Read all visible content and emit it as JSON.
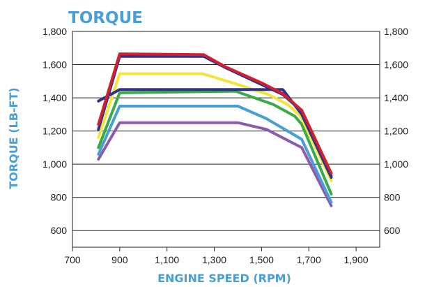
{
  "chart_data": {
    "type": "line",
    "title": "TORQUE",
    "xlabel": "ENGINE SPEED (RPM)",
    "ylabel": "TORQUE (LB-FT)",
    "xlim": [
      700,
      2000
    ],
    "ylim": [
      500,
      1800
    ],
    "x_ticks": [
      "700",
      "900",
      "1,100",
      "1,300",
      "1,500",
      "1,700",
      "1,900"
    ],
    "x_tick_values": [
      700,
      900,
      1100,
      1300,
      1500,
      1700,
      1900
    ],
    "y_ticks": [
      "600",
      "800",
      "1,000",
      "1,200",
      "1,400",
      "1,600",
      "1,800"
    ],
    "y_tick_values": [
      600,
      800,
      1000,
      1200,
      1400,
      1600,
      1800
    ],
    "grid": "horizontal",
    "accent_color": "#4a9ed6",
    "series": [
      {
        "color": "#8e5bab",
        "points": [
          [
            810,
            1030
          ],
          [
            900,
            1250
          ],
          [
            1400,
            1250
          ],
          [
            1520,
            1210
          ],
          [
            1670,
            1100
          ],
          [
            1795,
            750
          ]
        ]
      },
      {
        "color": "#4a9ed6",
        "points": [
          [
            810,
            1060
          ],
          [
            900,
            1350
          ],
          [
            1400,
            1350
          ],
          [
            1520,
            1275
          ],
          [
            1670,
            1150
          ],
          [
            1795,
            770
          ]
        ]
      },
      {
        "color": "#3aaa48",
        "points": [
          [
            810,
            1100
          ],
          [
            900,
            1430
          ],
          [
            1390,
            1440
          ],
          [
            1550,
            1360
          ],
          [
            1640,
            1290
          ],
          [
            1670,
            1240
          ],
          [
            1795,
            820
          ]
        ]
      },
      {
        "color": "#f2e53b",
        "points": [
          [
            810,
            1160
          ],
          [
            900,
            1545
          ],
          [
            1250,
            1545
          ],
          [
            1400,
            1480
          ],
          [
            1530,
            1420
          ],
          [
            1610,
            1360
          ],
          [
            1665,
            1290
          ],
          [
            1795,
            900
          ]
        ]
      },
      {
        "color": "#2e3290",
        "points": [
          [
            810,
            1210
          ],
          [
            900,
            1650
          ],
          [
            1255,
            1650
          ],
          [
            1350,
            1580
          ],
          [
            1500,
            1480
          ],
          [
            1590,
            1420
          ],
          [
            1670,
            1320
          ],
          [
            1795,
            930
          ]
        ]
      },
      {
        "color": "#2e3290",
        "points": [
          [
            810,
            1380
          ],
          [
            900,
            1450
          ],
          [
            1590,
            1450
          ],
          [
            1670,
            1300
          ],
          [
            1795,
            920
          ]
        ]
      },
      {
        "color": "#d12030",
        "points": [
          [
            810,
            1240
          ],
          [
            900,
            1665
          ],
          [
            1255,
            1660
          ],
          [
            1350,
            1585
          ],
          [
            1500,
            1490
          ],
          [
            1590,
            1425
          ],
          [
            1670,
            1325
          ],
          [
            1795,
            945
          ]
        ]
      }
    ]
  }
}
